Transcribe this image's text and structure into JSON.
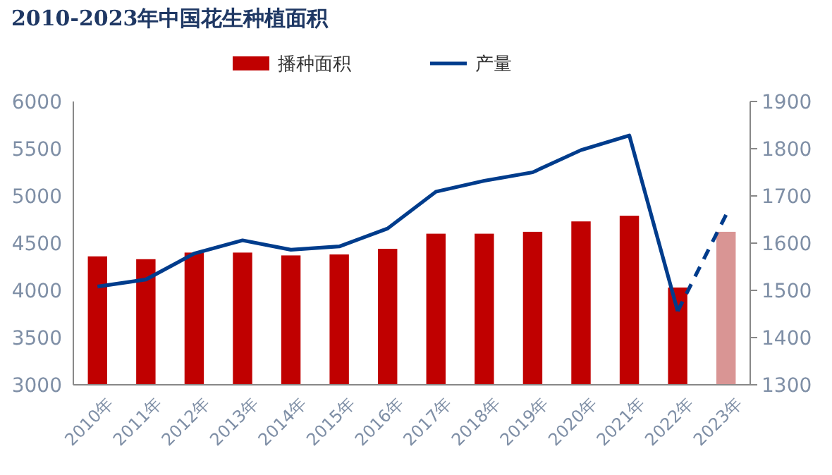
{
  "chart_data": {
    "type": "bar",
    "title": "2010-2023年中国花生种植面积",
    "categories": [
      "2010年",
      "2011年",
      "2012年",
      "2013年",
      "2014年",
      "2015年",
      "2016年",
      "2017年",
      "2018年",
      "2019年",
      "2020年",
      "2021年",
      "2022年",
      "2023年"
    ],
    "series": [
      {
        "name": "播种面积",
        "color": "#c00000",
        "colors": [
          "#c00000",
          "#c00000",
          "#c00000",
          "#c00000",
          "#c00000",
          "#c00000",
          "#c00000",
          "#c00000",
          "#c00000",
          "#c00000",
          "#c00000",
          "#c00000",
          "#c00000",
          "#d99594"
        ],
        "values": [
          4360,
          4330,
          4400,
          4400,
          4370,
          4380,
          4440,
          4600,
          4600,
          4620,
          4730,
          4790,
          4030,
          4620
        ]
      },
      {
        "name": "产量",
        "type": "line",
        "axis": "y2",
        "color": "#003c8c",
        "line_style": "solid",
        "values": [
          1508,
          1523,
          1578,
          1606,
          1586,
          1593,
          1631,
          1709,
          1732,
          1750,
          1797,
          1828,
          1456,
          null
        ]
      },
      {
        "type": "line",
        "axis": "y2",
        "color": "#003c8c",
        "line_style": "dashed",
        "values": [
          null,
          null,
          null,
          null,
          null,
          null,
          null,
          null,
          null,
          null,
          null,
          null,
          1456,
          1660
        ]
      }
    ],
    "ylim": [
      3000,
      6000
    ],
    "yticks": [
      3000,
      3500,
      4000,
      4500,
      5000,
      5500,
      6000
    ],
    "y2lim": [
      1300,
      1900
    ],
    "y2ticks": [
      1300,
      1400,
      1500,
      1600,
      1700,
      1800,
      1900
    ],
    "legend": "top",
    "grid": false
  }
}
